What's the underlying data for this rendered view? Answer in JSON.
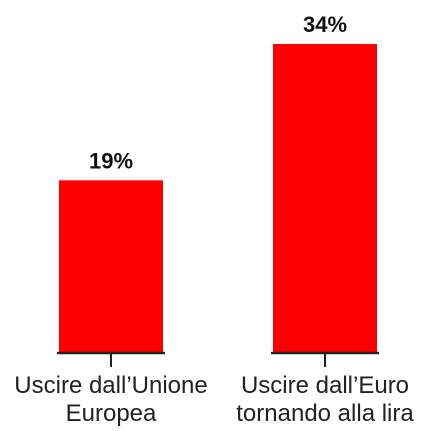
{
  "chart_data": {
    "type": "bar",
    "categories": [
      [
        "Uscire dall’Unione",
        "Europea"
      ],
      [
        "Uscire dall’Euro",
        "tornando alla lira"
      ]
    ],
    "values": [
      19,
      34
    ],
    "value_labels": [
      "19%",
      "34%"
    ],
    "title": "",
    "xlabel": "",
    "ylabel": "",
    "ylim": [
      0,
      34
    ],
    "grid": false,
    "bar_color": "#ff0000",
    "axis_color": "#222222"
  }
}
